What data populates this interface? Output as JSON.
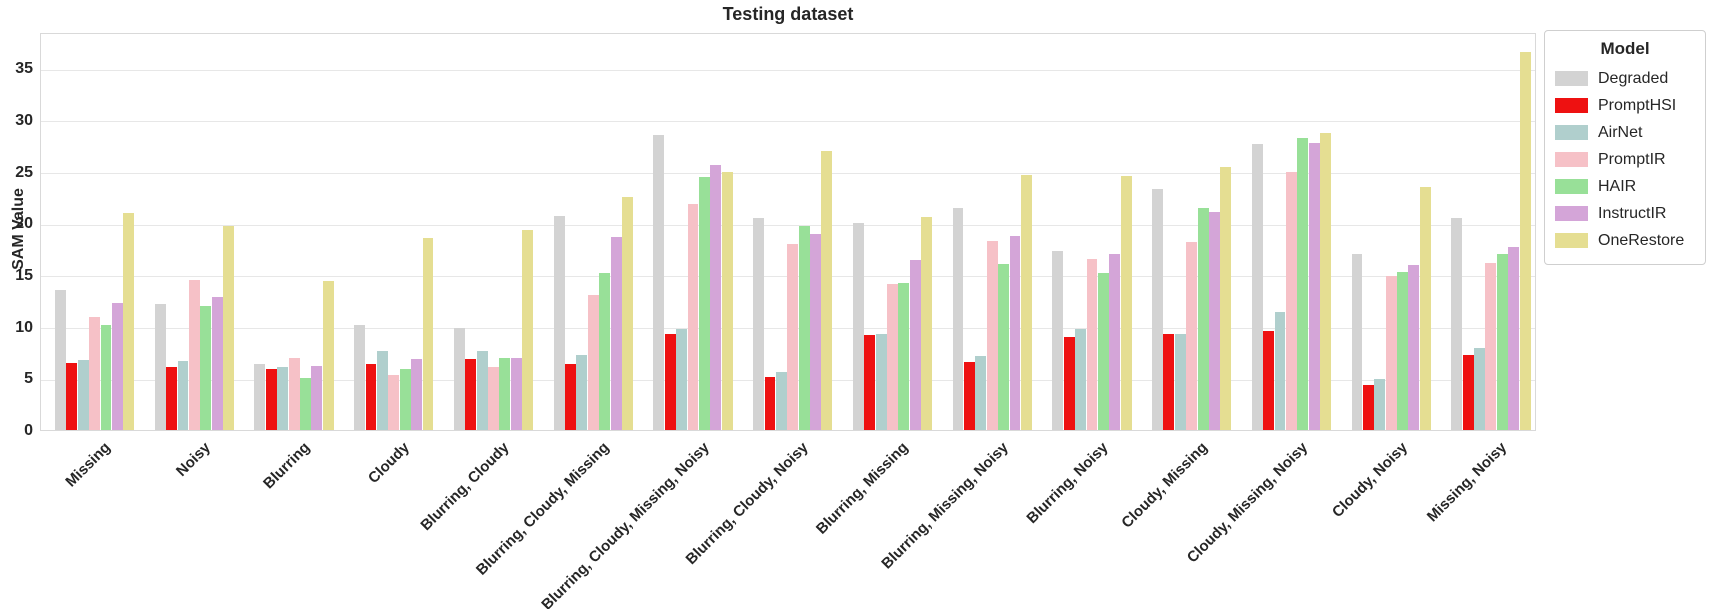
{
  "chart_data": {
    "type": "bar",
    "title": "Testing dataset",
    "xlabel": "",
    "ylabel": "SAM Value",
    "ylim": [
      0,
      38.5
    ],
    "yticks": [
      0,
      5,
      10,
      15,
      20,
      25,
      30,
      35
    ],
    "grid": true,
    "legend_title": "Model",
    "legend_position": "outside upper right",
    "categories": [
      "Missing",
      "Noisy",
      "Blurring",
      "Cloudy",
      "Blurring, Cloudy",
      "Blurring, Cloudy, Missing",
      "Blurring, Cloudy, Missing, Noisy",
      "Blurring, Cloudy, Noisy",
      "Blurring, Missing",
      "Blurring, Missing, Noisy",
      "Blurring, Noisy",
      "Cloudy, Missing",
      "Cloudy, Missing, Noisy",
      "Cloudy, Noisy",
      "Missing, Noisy"
    ],
    "series": [
      {
        "name": "Degraded",
        "color": "#d3d3d3",
        "values": [
          13.5,
          12.2,
          6.4,
          10.2,
          9.9,
          20.7,
          28.5,
          20.5,
          20.0,
          21.5,
          17.3,
          23.3,
          27.7,
          17.0,
          20.5
        ]
      },
      {
        "name": "PromptHSI",
        "color": "#ee1111",
        "values": [
          6.5,
          6.1,
          5.9,
          6.4,
          6.9,
          6.4,
          9.3,
          5.1,
          9.2,
          6.6,
          9.0,
          9.3,
          9.6,
          4.4,
          7.3
        ]
      },
      {
        "name": "AirNet",
        "color": "#b0cfcd",
        "values": [
          6.8,
          6.7,
          6.1,
          7.6,
          7.6,
          7.3,
          9.8,
          5.6,
          9.3,
          7.2,
          9.8,
          9.3,
          11.4,
          4.9,
          7.9
        ]
      },
      {
        "name": "PromptIR",
        "color": "#f6c1c7",
        "values": [
          10.9,
          14.5,
          7.0,
          5.3,
          6.1,
          13.1,
          21.9,
          18.0,
          14.1,
          18.3,
          16.5,
          18.2,
          25.0,
          14.9,
          16.2
        ]
      },
      {
        "name": "HAIR",
        "color": "#98e098",
        "values": [
          10.2,
          12.0,
          5.0,
          5.9,
          7.0,
          15.2,
          24.5,
          19.7,
          14.2,
          16.1,
          15.2,
          21.5,
          28.2,
          15.3,
          17.0
        ]
      },
      {
        "name": "InstructIR",
        "color": "#d4a5d8",
        "values": [
          12.3,
          12.9,
          6.2,
          6.9,
          7.0,
          18.7,
          25.6,
          19.0,
          16.4,
          18.8,
          17.0,
          21.1,
          27.8,
          16.0,
          17.7
        ]
      },
      {
        "name": "OneRestore",
        "color": "#e5de92",
        "values": [
          21.0,
          19.7,
          14.4,
          18.6,
          19.3,
          22.5,
          25.0,
          27.0,
          20.6,
          24.7,
          24.6,
          25.4,
          28.7,
          23.5,
          36.6
        ]
      }
    ]
  }
}
